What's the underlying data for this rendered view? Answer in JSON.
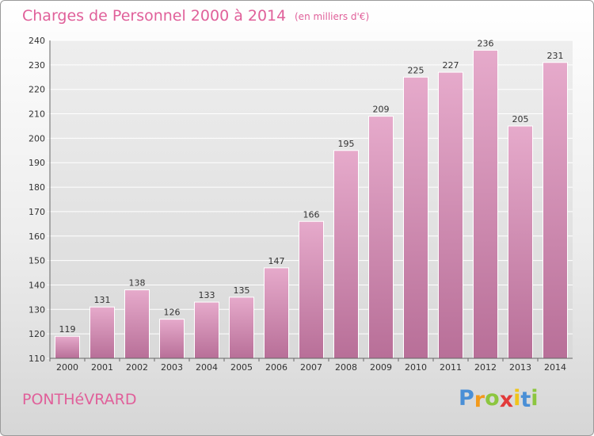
{
  "chart_data": {
    "type": "bar",
    "title": "Charges de Personnel 2000 à 2014",
    "subtitle": "(en milliers d'€)",
    "categories": [
      "2000",
      "2001",
      "2002",
      "2003",
      "2004",
      "2005",
      "2006",
      "2007",
      "2008",
      "2009",
      "2010",
      "2011",
      "2012",
      "2013",
      "2014"
    ],
    "values": [
      119,
      131,
      138,
      126,
      133,
      135,
      147,
      166,
      195,
      209,
      225,
      227,
      236,
      205,
      231
    ],
    "ylim": [
      110,
      240
    ],
    "yticks": [
      110,
      120,
      130,
      140,
      150,
      160,
      170,
      180,
      190,
      200,
      210,
      220,
      230,
      240
    ],
    "grid": true,
    "bar_color": "#d88db4",
    "accent_color": "#e0609a"
  },
  "footer": {
    "commune": "PONTHéVRARD",
    "logo": {
      "letters": [
        "P",
        "r",
        "o",
        "x",
        "i",
        "t",
        "i"
      ],
      "colors": [
        "#4a8fd6",
        "#f39a1c",
        "#8cc63f",
        "#e23a3a",
        "#f0c419",
        "#4a8fd6",
        "#8cc63f"
      ]
    }
  }
}
